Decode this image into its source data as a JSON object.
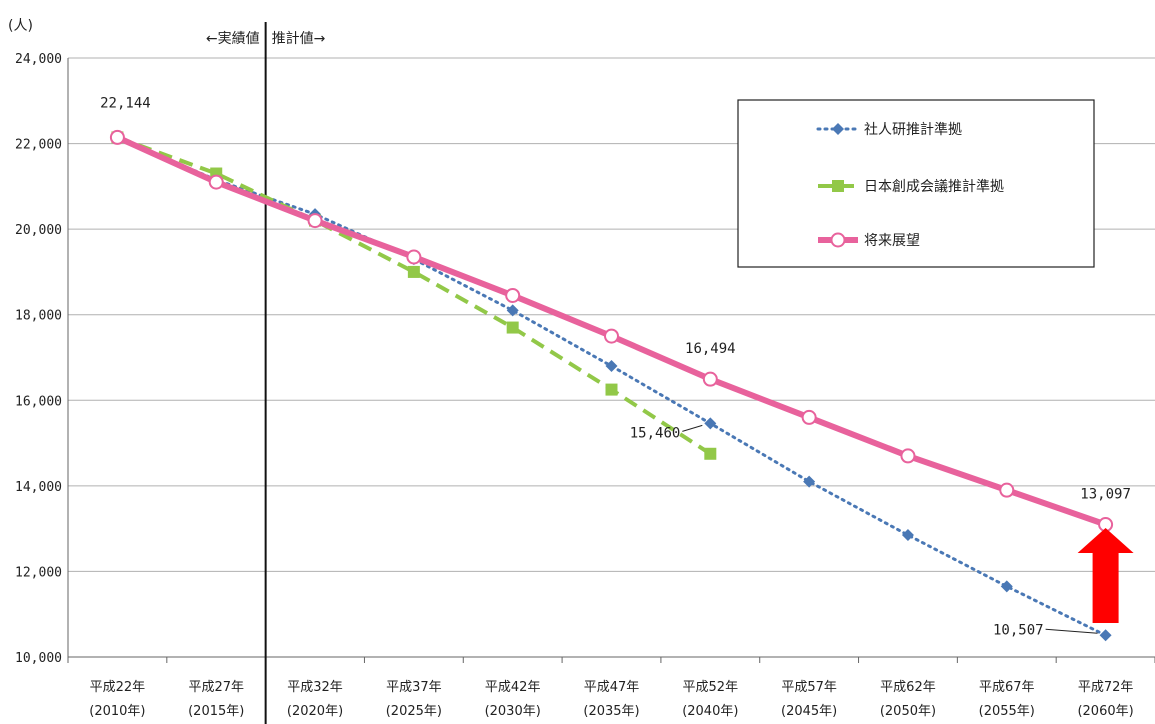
{
  "chart_data": {
    "type": "line",
    "unit_label": "(人)",
    "categories": [
      [
        "平成22年",
        "(2010年)"
      ],
      [
        "平成27年",
        "(2015年)"
      ],
      [
        "平成32年",
        "(2020年)"
      ],
      [
        "平成37年",
        "(2025年)"
      ],
      [
        "平成42年",
        "(2030年)"
      ],
      [
        "平成47年",
        "(2035年)"
      ],
      [
        "平成52年",
        "(2040年)"
      ],
      [
        "平成57年",
        "(2045年)"
      ],
      [
        "平成62年",
        "(2050年)"
      ],
      [
        "平成67年",
        "(2055年)"
      ],
      [
        "平成72年",
        "(2060年)"
      ]
    ],
    "ylim": [
      10000,
      24000
    ],
    "yticks": [
      10000,
      12000,
      14000,
      16000,
      18000,
      20000,
      22000,
      24000
    ],
    "ytick_labels": [
      "10,000",
      "12,000",
      "14,000",
      "16,000",
      "18,000",
      "20,000",
      "22,000",
      "24,000"
    ],
    "grid": true,
    "legend_position": "top-right",
    "divider": {
      "left_text": "←実績値",
      "right_text": "推計値→"
    },
    "series": [
      {
        "name": "社人研推計準拠",
        "style": "dotted",
        "marker": "diamond",
        "color": "#4a78b5",
        "values": [
          22144,
          21150,
          20350,
          19300,
          18100,
          16800,
          15460,
          14100,
          12850,
          11650,
          10507
        ]
      },
      {
        "name": "日本創成会議推計準拠",
        "style": "dashed",
        "marker": "square",
        "color": "#92c848",
        "values": [
          22144,
          21300,
          20200,
          19000,
          17700,
          16250,
          14750,
          null,
          null,
          null,
          null
        ]
      },
      {
        "name": "将来展望",
        "style": "solid",
        "marker": "circle",
        "color": "#e8629c",
        "values": [
          22144,
          21100,
          20200,
          19350,
          18450,
          17500,
          16494,
          15600,
          14700,
          13900,
          13097
        ]
      }
    ],
    "data_labels": [
      {
        "series": 2,
        "index": 0,
        "text": "22,144"
      },
      {
        "series": 2,
        "index": 6,
        "text": "16,494"
      },
      {
        "series": 0,
        "index": 6,
        "text": "15,460"
      },
      {
        "series": 2,
        "index": 10,
        "text": "13,097"
      },
      {
        "series": 0,
        "index": 10,
        "text": "10,507"
      }
    ],
    "arrow": {
      "color": "#ff0000",
      "direction": "up",
      "at_index": 10
    }
  }
}
